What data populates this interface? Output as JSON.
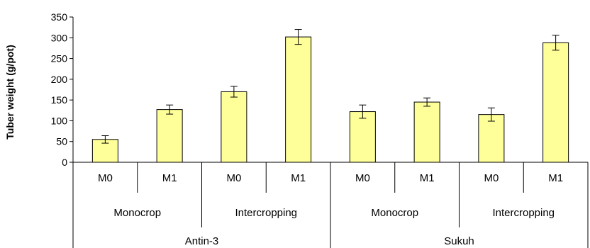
{
  "chart_data": {
    "type": "bar",
    "ylabel": "Tuber weight (g/pot)",
    "xlabel": "",
    "ylim": [
      0,
      350
    ],
    "yticks": [
      0,
      50,
      100,
      150,
      200,
      250,
      300,
      350
    ],
    "ytick_labels": [
      "0",
      "50",
      "100",
      "150",
      "200",
      "250",
      "300",
      "350"
    ],
    "categories": [
      [
        "M0",
        "Monocrop",
        "Antin-3"
      ],
      [
        "M1",
        "Monocrop",
        "Antin-3"
      ],
      [
        "M0",
        "Intercropping",
        "Antin-3"
      ],
      [
        "M1",
        "Intercropping",
        "Antin-3"
      ],
      [
        "M0",
        "Monocrop",
        "Sukuh"
      ],
      [
        "M1",
        "Monocrop",
        "Sukuh"
      ],
      [
        "M0",
        "Intercropping",
        "Sukuh"
      ],
      [
        "M1",
        "Intercropping",
        "Sukuh"
      ]
    ],
    "level1_labels": [
      "M0",
      "M1",
      "M0",
      "M1",
      "M0",
      "M1",
      "M0",
      "M1"
    ],
    "level2_labels": [
      "Monocrop",
      "Intercropping",
      "Monocrop",
      "Intercropping"
    ],
    "level3_labels": [
      "Antin-3",
      "Sukuh"
    ],
    "values": [
      55,
      127,
      170,
      302,
      122,
      145,
      115,
      288
    ],
    "errors": [
      9,
      11,
      13,
      18,
      16,
      10,
      16,
      18
    ],
    "bar_color": "#ffff99",
    "bar_edge_color": "#000000",
    "grid": false,
    "legend": "none"
  }
}
